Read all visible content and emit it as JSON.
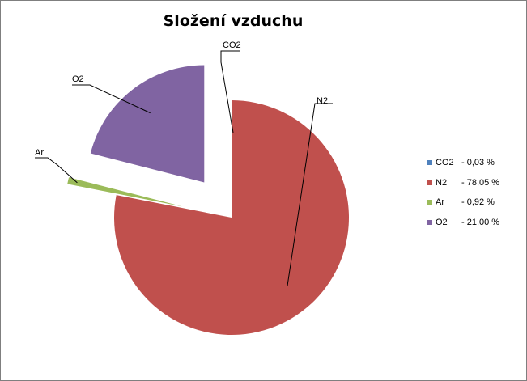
{
  "chart_data": {
    "type": "pie",
    "title": "Složení vzduchu",
    "categories": [
      "CO2",
      "N2",
      "Ar",
      "O2"
    ],
    "values": [
      0.03,
      78.05,
      0.92,
      21.0
    ],
    "unit": "%",
    "colors": [
      "#4f81bd",
      "#c0504d",
      "#9bbb59",
      "#8064a2"
    ],
    "labels": [
      "CO2",
      "N2",
      "Ar",
      "O2"
    ],
    "legend": {
      "position": "right",
      "entries": [
        {
          "name": "CO2",
          "value": "- 0,03 %"
        },
        {
          "name": "N2",
          "value": "- 78,05 %"
        },
        {
          "name": "Ar",
          "value": "- 0,92 %"
        },
        {
          "name": "O2",
          "value": "- 21,00 %"
        }
      ]
    },
    "exploded": true
  }
}
